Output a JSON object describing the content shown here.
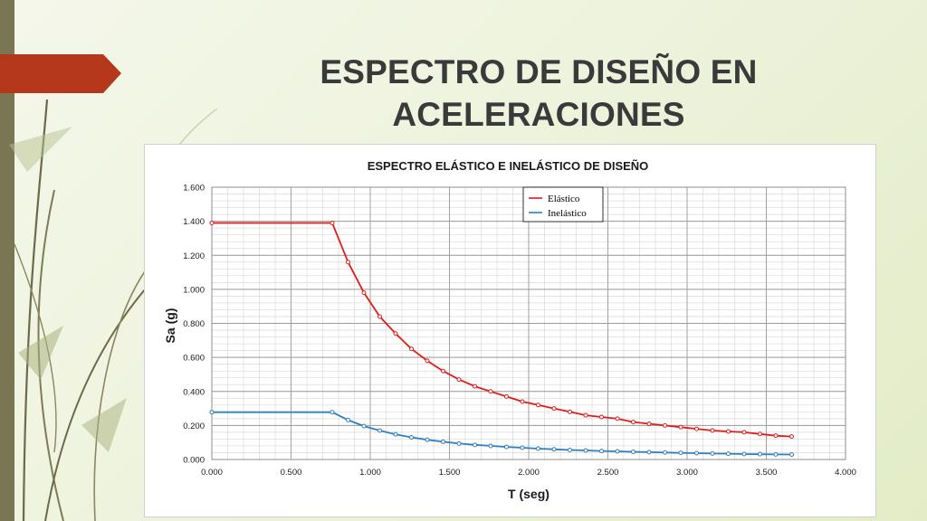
{
  "slide": {
    "title_line1": "ESPECTRO DE DISEÑO EN",
    "title_line2": "ACELERACIONES"
  },
  "colors": {
    "accent_bar": "#b5381c",
    "left_bar": "#7a7553",
    "elastic": "#e01c1c",
    "inelastic": "#2f7fc1"
  },
  "chart_data": {
    "type": "line",
    "title": "ESPECTRO ELÁSTICO E INELÁSTICO DE DISEÑO",
    "xlabel": "T (seg)",
    "ylabel": "Sa (g)",
    "xlim": [
      0,
      4
    ],
    "ylim": [
      0,
      1.6
    ],
    "x_ticks": [
      "0.000",
      "0.500",
      "1.000",
      "1.500",
      "2.000",
      "2.500",
      "3.000",
      "3.500",
      "4.000"
    ],
    "y_ticks": [
      "0.000",
      "0.200",
      "0.400",
      "0.600",
      "0.800",
      "1.000",
      "1.200",
      "1.400",
      "1.600"
    ],
    "grid": true,
    "legend_position": "top-right",
    "series": [
      {
        "name": "Elástico",
        "color": "#e01c1c",
        "x": [
          0,
          0.76,
          0.86,
          0.96,
          1.06,
          1.16,
          1.26,
          1.36,
          1.46,
          1.56,
          1.66,
          1.76,
          1.86,
          1.96,
          2.06,
          2.16,
          2.26,
          2.36,
          2.46,
          2.56,
          2.66,
          2.76,
          2.86,
          2.96,
          3.06,
          3.16,
          3.26,
          3.36,
          3.46,
          3.56,
          3.66
        ],
        "y": [
          1.39,
          1.39,
          1.16,
          0.98,
          0.84,
          0.74,
          0.65,
          0.58,
          0.52,
          0.47,
          0.43,
          0.4,
          0.37,
          0.34,
          0.32,
          0.3,
          0.28,
          0.26,
          0.25,
          0.24,
          0.22,
          0.21,
          0.2,
          0.19,
          0.18,
          0.17,
          0.165,
          0.16,
          0.15,
          0.14,
          0.135
        ]
      },
      {
        "name": "Inelástico",
        "color": "#2f7fc1",
        "x": [
          0,
          0.76,
          0.86,
          0.96,
          1.06,
          1.16,
          1.26,
          1.36,
          1.46,
          1.56,
          1.66,
          1.76,
          1.86,
          1.96,
          2.06,
          2.16,
          2.26,
          2.36,
          2.46,
          2.56,
          2.66,
          2.76,
          2.86,
          2.96,
          3.06,
          3.16,
          3.26,
          3.36,
          3.46,
          3.56,
          3.66
        ],
        "y": [
          0.278,
          0.278,
          0.232,
          0.196,
          0.17,
          0.148,
          0.13,
          0.116,
          0.104,
          0.094,
          0.086,
          0.08,
          0.074,
          0.069,
          0.064,
          0.06,
          0.056,
          0.053,
          0.05,
          0.048,
          0.045,
          0.043,
          0.041,
          0.039,
          0.037,
          0.035,
          0.034,
          0.032,
          0.031,
          0.03,
          0.029
        ]
      }
    ]
  }
}
